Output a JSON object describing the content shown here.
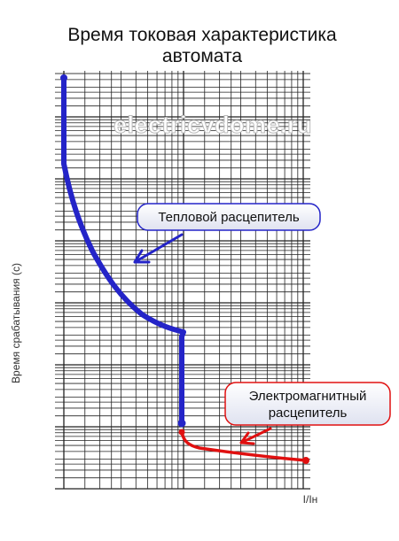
{
  "title": [
    "Время токовая характеристика",
    "автомата"
  ],
  "y_axis_label": "Время срабатывания (с)",
  "x_axis_label": "I/Iн",
  "watermark": "electricvdome.ru",
  "callouts": [
    {
      "lines": [
        "Тепловой расцепитель"
      ]
    },
    {
      "lines": [
        "Электромагнитный",
        "расцепитель"
      ]
    }
  ]
}
